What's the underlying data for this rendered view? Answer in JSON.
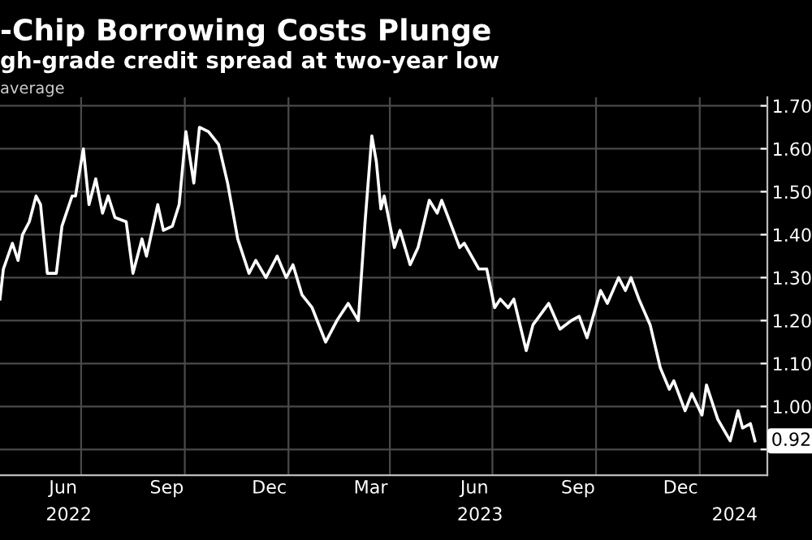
{
  "chart_data": {
    "type": "line",
    "title": "-Chip Borrowing Costs Plunge",
    "subtitle": "gh-grade credit spread at two-year low",
    "ylabel": "average",
    "x": [
      "2022-04-20",
      "2022-04-23",
      "2022-05-01",
      "2022-05-06",
      "2022-05-10",
      "2022-05-16",
      "2022-05-22",
      "2022-05-26",
      "2022-06-01",
      "2022-06-09",
      "2022-06-14",
      "2022-06-23",
      "2022-06-26",
      "2022-07-03",
      "2022-07-08",
      "2022-07-14",
      "2022-07-20",
      "2022-07-25",
      "2022-07-31",
      "2022-08-10",
      "2022-08-16",
      "2022-08-24",
      "2022-08-28",
      "2022-09-07",
      "2022-09-12",
      "2022-09-20",
      "2022-09-26",
      "2022-10-02",
      "2022-10-09",
      "2022-10-14",
      "2022-10-22",
      "2022-10-31",
      "2022-11-08",
      "2022-11-17",
      "2022-11-27",
      "2022-12-03",
      "2022-12-12",
      "2022-12-22",
      "2022-12-30",
      "2023-01-05",
      "2023-01-13",
      "2023-01-22",
      "2023-02-03",
      "2023-02-13",
      "2023-02-23",
      "2023-03-04",
      "2023-03-10",
      "2023-03-16",
      "2023-03-20",
      "2023-03-24",
      "2023-03-27",
      "2023-04-05",
      "2023-04-10",
      "2023-04-19",
      "2023-04-26",
      "2023-05-06",
      "2023-05-13",
      "2023-05-17",
      "2023-06-02",
      "2023-06-06",
      "2023-06-19",
      "2023-06-26",
      "2023-07-03",
      "2023-07-08",
      "2023-07-15",
      "2023-07-20",
      "2023-07-31",
      "2023-08-06",
      "2023-08-20",
      "2023-08-30",
      "2023-09-09",
      "2023-09-16",
      "2023-09-23",
      "2023-10-05",
      "2023-10-11",
      "2023-10-21",
      "2023-10-27",
      "2023-11-01",
      "2023-11-08",
      "2023-11-18",
      "2023-11-27",
      "2023-12-05",
      "2023-12-09",
      "2023-12-19",
      "2023-12-25",
      "2024-01-03",
      "2024-01-07",
      "2024-01-17",
      "2024-01-28",
      "2024-02-04",
      "2024-02-08",
      "2024-02-15",
      "2024-02-19"
    ],
    "series": [
      {
        "color": "#ffffff",
        "values": [
          1.25,
          1.32,
          1.38,
          1.34,
          1.4,
          1.43,
          1.49,
          1.47,
          1.31,
          1.31,
          1.42,
          1.49,
          1.49,
          1.6,
          1.47,
          1.53,
          1.45,
          1.49,
          1.44,
          1.43,
          1.31,
          1.39,
          1.35,
          1.47,
          1.41,
          1.42,
          1.47,
          1.64,
          1.52,
          1.65,
          1.64,
          1.61,
          1.52,
          1.39,
          1.31,
          1.34,
          1.3,
          1.35,
          1.3,
          1.33,
          1.26,
          1.23,
          1.15,
          1.2,
          1.24,
          1.2,
          1.43,
          1.63,
          1.57,
          1.46,
          1.49,
          1.37,
          1.41,
          1.33,
          1.37,
          1.48,
          1.45,
          1.48,
          1.37,
          1.38,
          1.32,
          1.32,
          1.23,
          1.25,
          1.23,
          1.25,
          1.13,
          1.19,
          1.24,
          1.18,
          1.2,
          1.21,
          1.16,
          1.27,
          1.24,
          1.3,
          1.27,
          1.3,
          1.25,
          1.19,
          1.09,
          1.04,
          1.06,
          0.99,
          1.03,
          0.98,
          1.05,
          0.97,
          0.92,
          0.99,
          0.95,
          0.96,
          0.92
        ]
      }
    ],
    "xlim": [
      "2022-04-20",
      "2024-03-01"
    ],
    "xticks": [
      {
        "value": "2022-06-15",
        "label": "Jun"
      },
      {
        "value": "2022-09-15",
        "label": "Sep"
      },
      {
        "value": "2022-12-15",
        "label": "Dec"
      },
      {
        "value": "2023-03-15",
        "label": "Mar"
      },
      {
        "value": "2023-06-15",
        "label": "Jun"
      },
      {
        "value": "2023-09-15",
        "label": "Sep"
      },
      {
        "value": "2023-12-15",
        "label": "Dec"
      },
      {
        "value": "2022-07-01",
        "label": null
      },
      {
        "value": "2022-10-01",
        "label": null
      },
      {
        "value": "2023-01-01",
        "label": null
      },
      {
        "value": "2023-04-01",
        "label": null
      },
      {
        "value": "2023-07-01",
        "label": null
      },
      {
        "value": "2023-10-01",
        "label": null
      },
      {
        "value": "2024-01-01",
        "label": null
      }
    ],
    "x2lim": [
      "2022-04-20",
      "2024-03-01"
    ],
    "x2ticks": [
      {
        "value": "2022-06-20",
        "label": "2022"
      },
      {
        "value": "2023-06-20",
        "label": "2023"
      },
      {
        "value": "2024-02-01",
        "label": "2024"
      }
    ],
    "ylim": [
      0.84,
      1.72
    ],
    "yticks": [
      {
        "value": 0.9,
        "label": null
      },
      {
        "value": 1.0,
        "label": "1.00"
      },
      {
        "value": 1.1,
        "label": "1.10"
      },
      {
        "value": 1.2,
        "label": "1.20"
      },
      {
        "value": 1.3,
        "label": "1.30"
      },
      {
        "value": 1.4,
        "label": "1.40"
      },
      {
        "value": 1.5,
        "label": "1.50"
      },
      {
        "value": 1.6,
        "label": "1.60"
      },
      {
        "value": 1.7,
        "label": "1.70"
      }
    ],
    "grid": true,
    "annotations": [
      {
        "text": "0.92",
        "x": "2024-02-19",
        "y": 0.92
      }
    ]
  }
}
